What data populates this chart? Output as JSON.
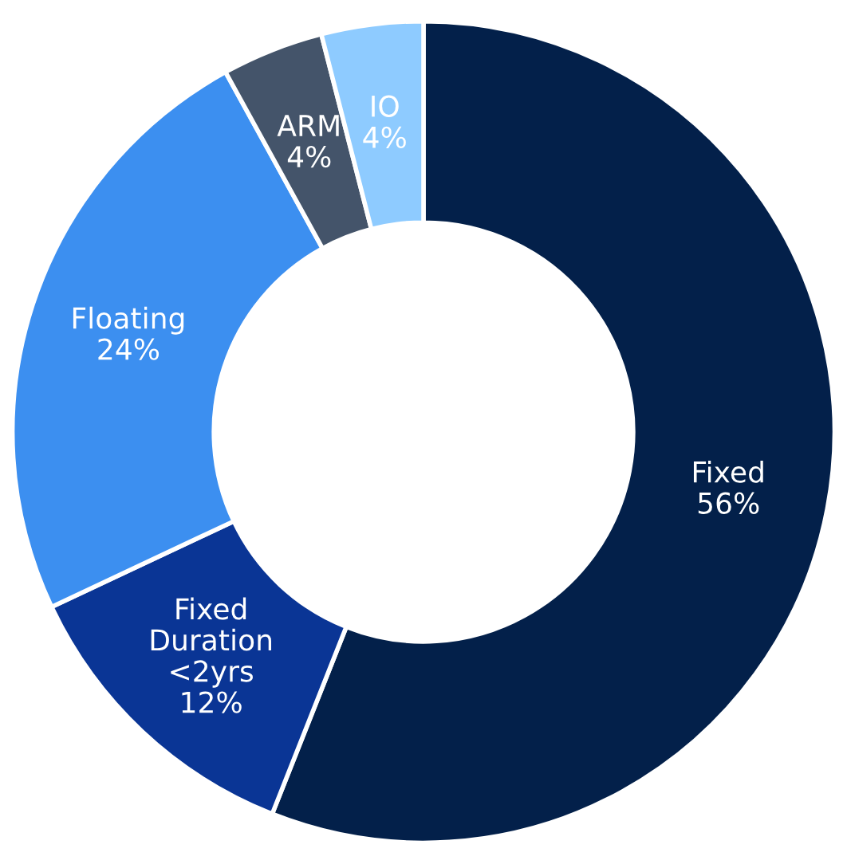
{
  "chart_data": {
    "type": "donut",
    "categories": [
      "Fixed",
      "Fixed\nDuration\n<2yrs",
      "Floating",
      "ARM",
      "IO"
    ],
    "values": [
      56,
      12,
      24,
      4,
      4
    ],
    "value_labels": [
      "56%",
      "12%",
      "24%",
      "4%",
      "4%"
    ],
    "colors": [
      "#03204a",
      "#0a3595",
      "#3c8ff0",
      "#44546a",
      "#8ecbff"
    ],
    "legend": false
  }
}
